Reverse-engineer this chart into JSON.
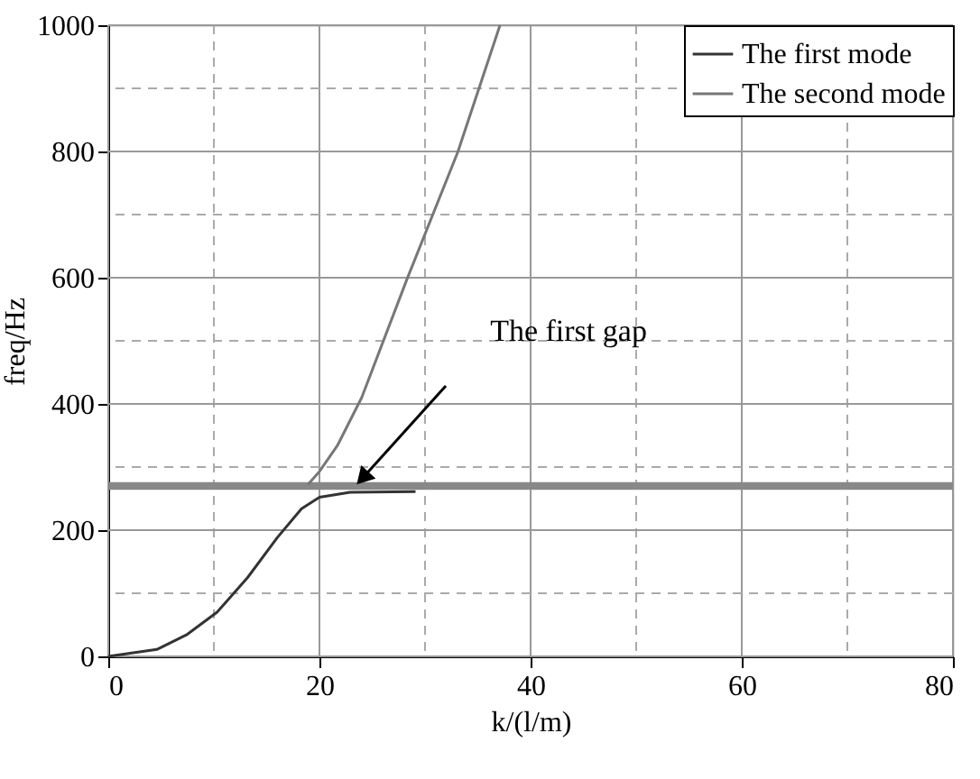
{
  "chart_data": {
    "type": "line",
    "xlabel": "k/(l/m)",
    "ylabel": "freq/Hz",
    "xlim": [
      0,
      80
    ],
    "xticks": [
      0,
      20,
      40,
      60,
      80
    ],
    "ylim": [
      0,
      1000
    ],
    "yticks": [
      0,
      200,
      400,
      600,
      800,
      1000
    ],
    "grid": true,
    "legend": "top right",
    "line_style": "solid",
    "marker": "none",
    "series": [
      {
        "name": "The first mode",
        "color": "#333333",
        "x": [
          0,
          4.6,
          7.4,
          10.3,
          13.2,
          16,
          18.3,
          20,
          22.9,
          29.1
        ],
        "values": [
          0,
          11,
          34,
          70,
          125,
          188,
          234,
          252,
          260,
          261
        ]
      },
      {
        "name": "The second mode",
        "color": "#777777",
        "x": [
          18.9,
          20,
          21.7,
          24,
          28.3,
          33.1,
          37.1
        ],
        "values": [
          272,
          293,
          334,
          410,
          598,
          799,
          1000
        ]
      }
    ],
    "bands": [
      {
        "axis": "y",
        "from": 264,
        "to": 276,
        "color": "#888888"
      }
    ],
    "annotations": [
      "The first gap"
    ]
  }
}
